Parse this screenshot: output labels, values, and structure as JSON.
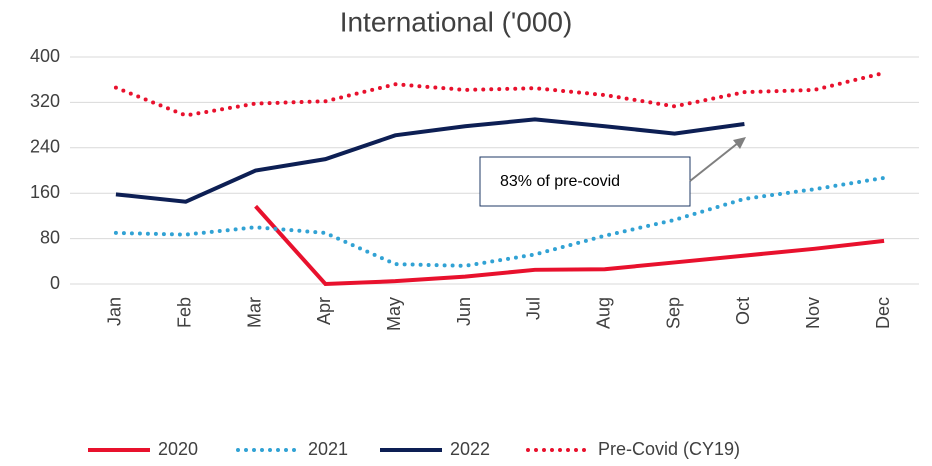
{
  "chart_data": {
    "type": "line",
    "title": "International ('000)",
    "categories": [
      "Jan",
      "Feb",
      "Mar",
      "Apr",
      "May",
      "Jun",
      "Jul",
      "Aug",
      "Sep",
      "Oct",
      "Nov",
      "Dec"
    ],
    "series": [
      {
        "name": "2020",
        "color": "#e8112d",
        "style": "solid",
        "values": [
          null,
          null,
          137,
          0,
          5,
          13,
          25,
          26,
          38,
          50,
          62,
          76
        ]
      },
      {
        "name": "2021",
        "color": "#31a2d4",
        "style": "dotted",
        "values": [
          90,
          87,
          100,
          90,
          35,
          32,
          52,
          85,
          113,
          150,
          167,
          187
        ]
      },
      {
        "name": "2022",
        "color": "#0d1f54",
        "style": "solid",
        "values": [
          158,
          145,
          200,
          220,
          262,
          278,
          290,
          278,
          265,
          282,
          null,
          null
        ]
      },
      {
        "name": "Pre-Covid (CY19)",
        "color": "#e8112d",
        "style": "dotted",
        "values": [
          346,
          297,
          318,
          322,
          352,
          342,
          345,
          333,
          313,
          338,
          342,
          372
        ]
      }
    ],
    "ylim": [
      0,
      400
    ],
    "yticks": [
      0,
      80,
      160,
      240,
      320,
      400
    ],
    "grid": true,
    "annotation": "83% of pre-covid",
    "legend": "bottom"
  }
}
